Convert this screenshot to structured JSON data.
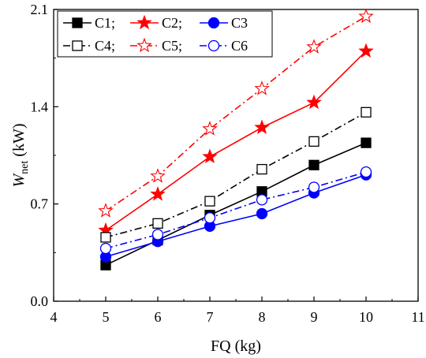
{
  "chart_data": {
    "type": "line",
    "x": [
      5,
      6,
      7,
      8,
      9,
      10
    ],
    "xlabel": "FQ (kg)",
    "ylabel_main": "W",
    "ylabel_sub": "net",
    "ylabel_unit": " (kW)",
    "xlim": [
      4,
      11
    ],
    "ylim": [
      0,
      2.1
    ],
    "xticks": [
      "4",
      "5",
      "6",
      "7",
      "8",
      "9",
      "10",
      "11"
    ],
    "yticks": [
      "0.0",
      "0.7",
      "1.4",
      "2.1"
    ],
    "grid": false,
    "legend_position": "top-left",
    "series": [
      {
        "name": "C1;",
        "values": [
          0.26,
          0.44,
          0.62,
          0.79,
          0.98,
          1.14
        ],
        "color": "#000000",
        "marker": "square",
        "filled": true,
        "dash": "solid"
      },
      {
        "name": "C2;",
        "values": [
          0.51,
          0.77,
          1.04,
          1.25,
          1.43,
          1.8
        ],
        "color": "#ff0000",
        "marker": "star",
        "filled": true,
        "dash": "solid"
      },
      {
        "name": "C3",
        "values": [
          0.32,
          0.43,
          0.54,
          0.63,
          0.78,
          0.91
        ],
        "color": "#0000ff",
        "marker": "circle",
        "filled": true,
        "dash": "solid"
      },
      {
        "name": "C4;",
        "values": [
          0.46,
          0.56,
          0.72,
          0.95,
          1.15,
          1.36
        ],
        "color": "#000000",
        "marker": "square",
        "filled": false,
        "dash": "dashdot"
      },
      {
        "name": "C5;",
        "values": [
          0.65,
          0.9,
          1.24,
          1.53,
          1.83,
          2.05
        ],
        "color": "#ff0000",
        "marker": "star",
        "filled": false,
        "dash": "dashdot"
      },
      {
        "name": "C6",
        "values": [
          0.38,
          0.48,
          0.6,
          0.73,
          0.82,
          0.93
        ],
        "color": "#0000ff",
        "marker": "circle",
        "filled": false,
        "dash": "dashdot"
      }
    ]
  }
}
